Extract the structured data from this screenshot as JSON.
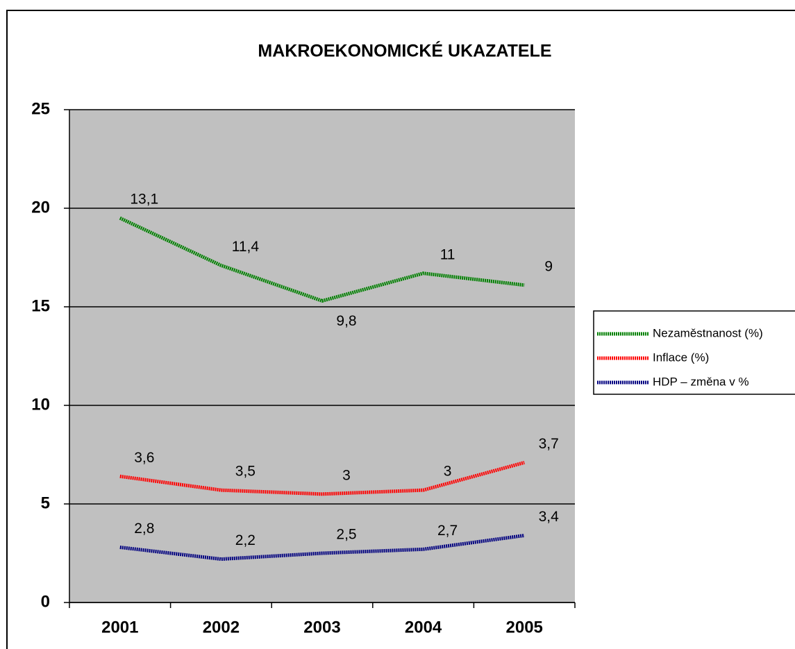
{
  "chart_data": {
    "type": "line",
    "stacked": true,
    "title": "MAKROEKONOMICKÉ UKAZATELE",
    "categories": [
      "2001",
      "2002",
      "2003",
      "2004",
      "2005"
    ],
    "series": [
      {
        "name": "Nezaměstnanost (%)",
        "color": "#008000",
        "values": [
          13.1,
          11.4,
          9.8,
          11,
          9
        ],
        "value_labels": [
          "13,1",
          "11,4",
          "9,8",
          "11",
          "9"
        ]
      },
      {
        "name": "Inflace (%)",
        "color": "#ff0000",
        "values": [
          3.6,
          3.5,
          3,
          3,
          3.7
        ],
        "value_labels": [
          "3,6",
          "3,5",
          "3",
          "3",
          "3,7"
        ]
      },
      {
        "name": "HDP – změna v %",
        "color": "#000080",
        "values": [
          2.8,
          2.2,
          2.5,
          2.7,
          3.4
        ],
        "value_labels": [
          "2,8",
          "2,2",
          "2,5",
          "2,7",
          "3,4"
        ]
      }
    ],
    "ylim": [
      0,
      25
    ],
    "yticks": [
      0,
      5,
      10,
      15,
      20,
      25
    ],
    "grid": true,
    "legend": "right"
  }
}
